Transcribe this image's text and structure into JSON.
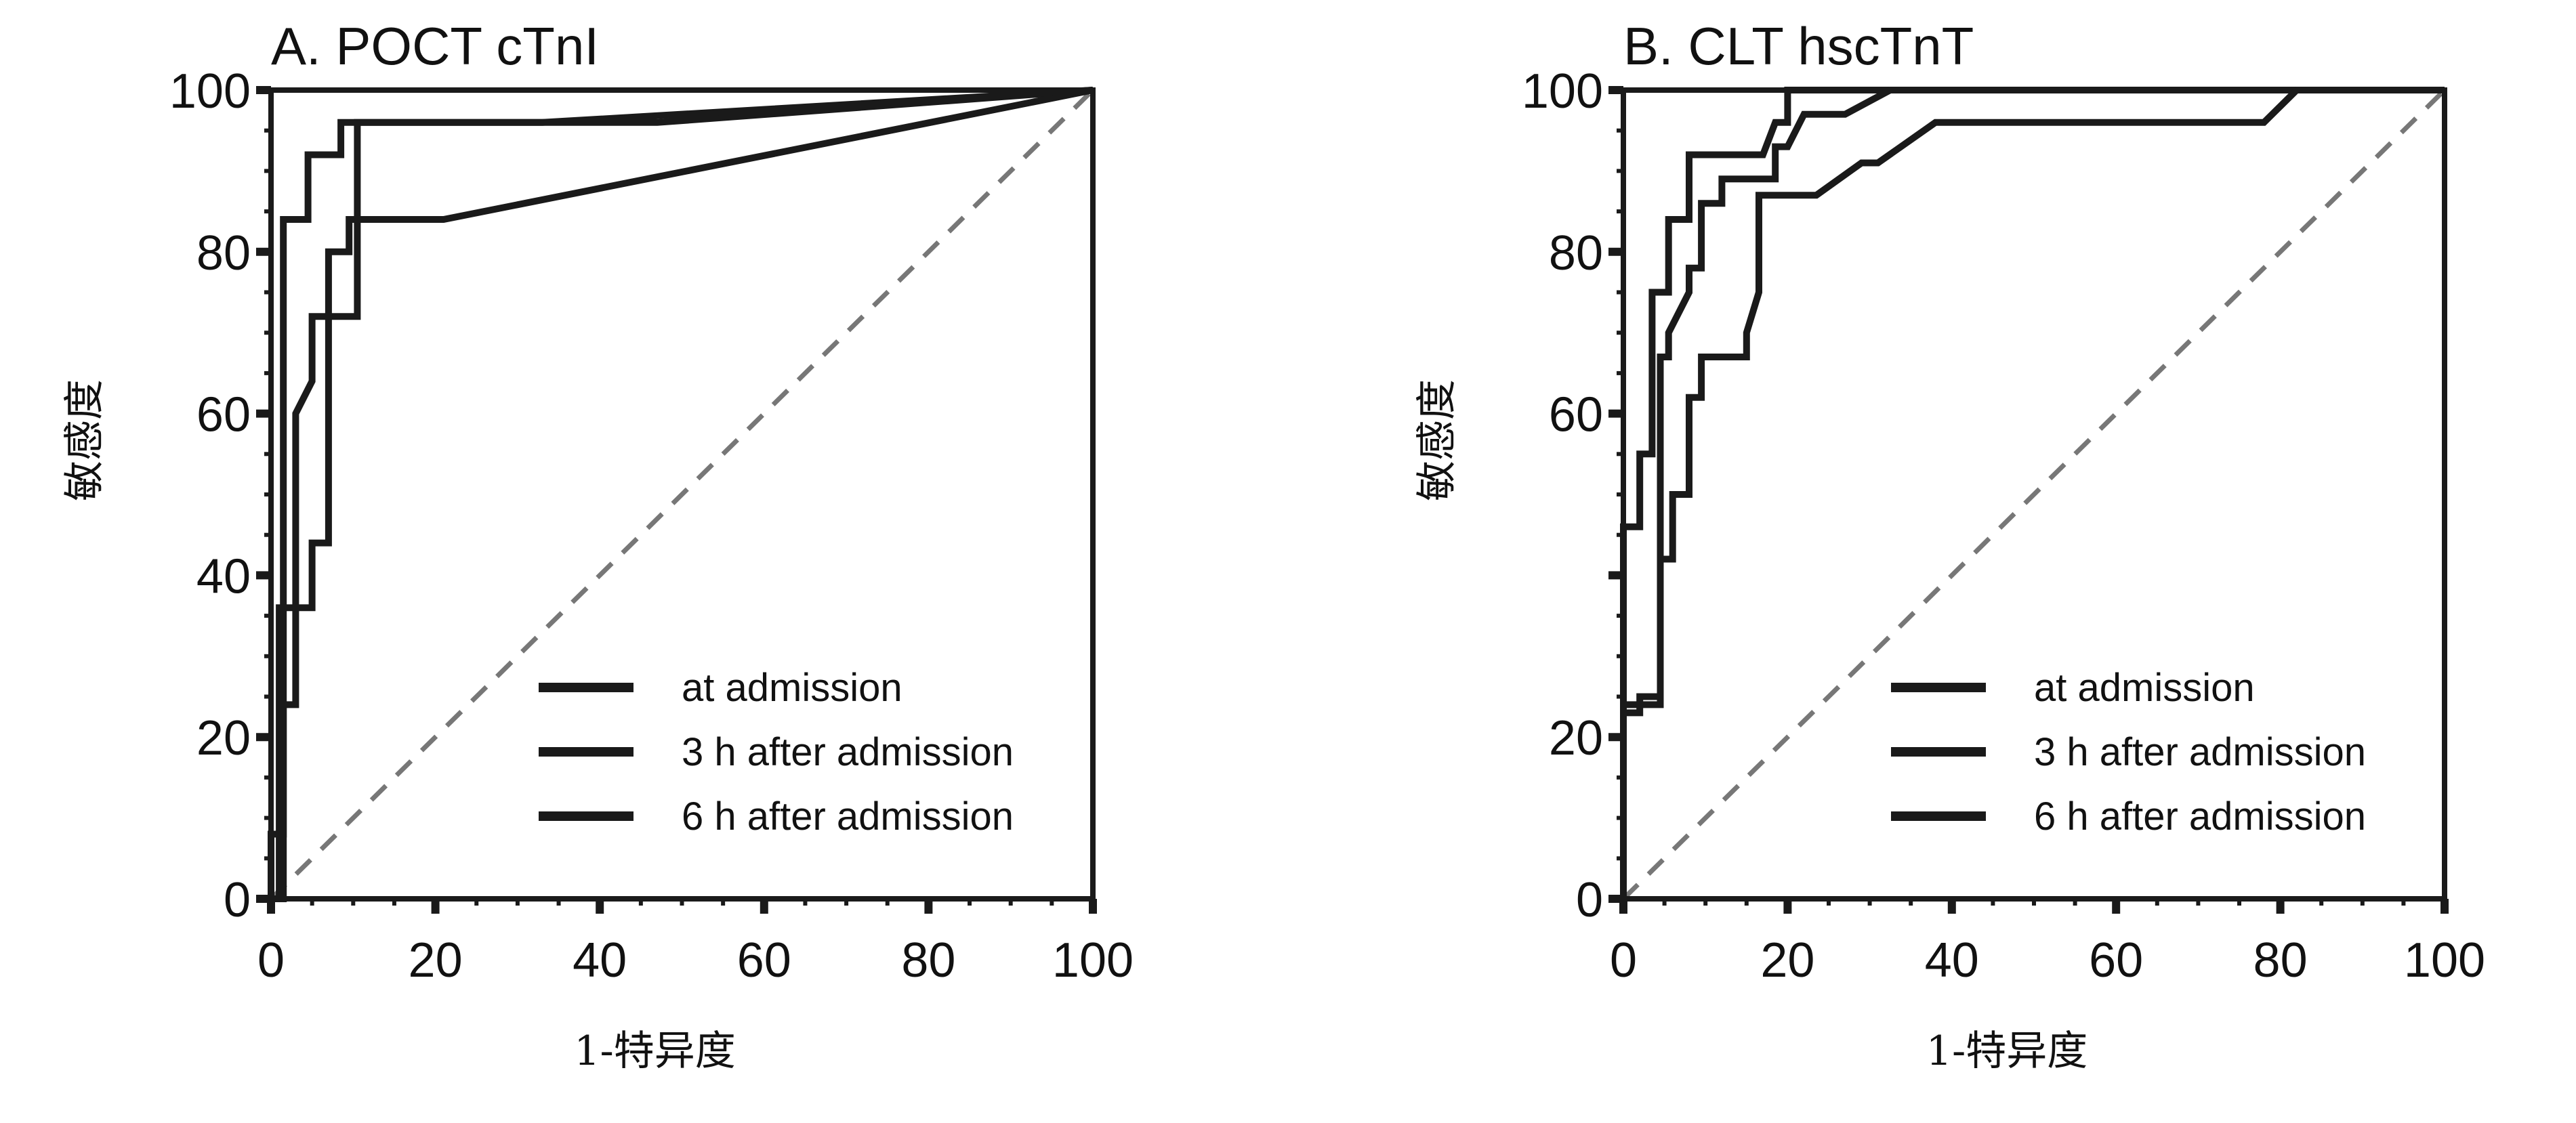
{
  "chart_data": [
    {
      "type": "line",
      "title": "A.  POCT    cTnI",
      "xlabel": "1-特异度",
      "ylabel": "敏感度",
      "xlim": [
        0,
        100
      ],
      "ylim": [
        0,
        100
      ],
      "xticks": [
        "0",
        "20",
        "40",
        "60",
        "80",
        "100"
      ],
      "yticks": [
        "0",
        "20",
        "40",
        "60",
        "80",
        "100"
      ],
      "legend_position": "bottom-right",
      "colors": {
        "series": "#1a1a1a",
        "reference": "#777777"
      },
      "series": [
        {
          "name": "at admission",
          "points": [
            [
              0,
              0
            ],
            [
              1.5,
              0
            ],
            [
              1.5,
              84
            ],
            [
              4.5,
              84
            ],
            [
              4.5,
              92
            ],
            [
              8.5,
              92
            ],
            [
              8.5,
              96
            ],
            [
              47,
              96
            ],
            [
              100,
              100
            ]
          ]
        },
        {
          "name": "3 h after admission",
          "points": [
            [
              0,
              0
            ],
            [
              0,
              8
            ],
            [
              1.5,
              8
            ],
            [
              1.5,
              24
            ],
            [
              3,
              24
            ],
            [
              3,
              60
            ],
            [
              5,
              64
            ],
            [
              5,
              72
            ],
            [
              7,
              72
            ],
            [
              7,
              80
            ],
            [
              9.5,
              80
            ],
            [
              9.5,
              84
            ],
            [
              21,
              84
            ],
            [
              100,
              100
            ]
          ]
        },
        {
          "name": "6 h after admission",
          "points": [
            [
              0,
              0
            ],
            [
              1,
              0
            ],
            [
              1,
              36
            ],
            [
              5,
              36
            ],
            [
              5,
              44
            ],
            [
              7,
              44
            ],
            [
              7,
              72
            ],
            [
              10.5,
              72
            ],
            [
              10.5,
              96
            ],
            [
              33,
              96
            ],
            [
              100,
              100
            ]
          ]
        }
      ],
      "reference_line": [
        [
          0,
          0
        ],
        [
          100,
          100
        ]
      ]
    },
    {
      "type": "line",
      "title": "B.  CLT    hscTnT",
      "xlabel": "1-特异度",
      "ylabel": "敏感度",
      "xlim": [
        0,
        100
      ],
      "ylim": [
        0,
        100
      ],
      "xticks": [
        "0",
        "20",
        "40",
        "60",
        "80",
        "100"
      ],
      "yticks": [
        "0",
        "20",
        "60",
        "80",
        "100"
      ],
      "legend_position": "bottom-right",
      "colors": {
        "series": "#1a1a1a",
        "reference": "#777777"
      },
      "series": [
        {
          "name": "at admission",
          "points": [
            [
              0,
              0
            ],
            [
              0,
              46
            ],
            [
              2,
              46
            ],
            [
              2,
              55
            ],
            [
              3.5,
              55
            ],
            [
              3.5,
              75
            ],
            [
              5.5,
              75
            ],
            [
              5.5,
              84
            ],
            [
              8,
              84
            ],
            [
              8,
              92
            ],
            [
              17,
              92
            ],
            [
              18.5,
              96
            ],
            [
              20,
              96
            ],
            [
              20,
              100
            ],
            [
              100,
              100
            ]
          ]
        },
        {
          "name": "3 h after admission",
          "points": [
            [
              0,
              0
            ],
            [
              0,
              23
            ],
            [
              2,
              23
            ],
            [
              2,
              25
            ],
            [
              4.5,
              25
            ],
            [
              4.5,
              67
            ],
            [
              5.5,
              67
            ],
            [
              5.5,
              70
            ],
            [
              8,
              75
            ],
            [
              8,
              78
            ],
            [
              9.5,
              78
            ],
            [
              9.5,
              86
            ],
            [
              12,
              86
            ],
            [
              12,
              89
            ],
            [
              18.5,
              89
            ],
            [
              18.5,
              93
            ],
            [
              20,
              93
            ],
            [
              22,
              97
            ],
            [
              27,
              97
            ],
            [
              32.5,
              100
            ],
            [
              100,
              100
            ]
          ]
        },
        {
          "name": "6 h after admission",
          "points": [
            [
              0,
              0
            ],
            [
              0,
              24
            ],
            [
              4.5,
              24
            ],
            [
              4.5,
              42
            ],
            [
              6,
              42
            ],
            [
              6,
              50
            ],
            [
              8,
              50
            ],
            [
              8,
              62
            ],
            [
              9.5,
              62
            ],
            [
              9.5,
              67
            ],
            [
              15,
              67
            ],
            [
              15,
              70
            ],
            [
              16.5,
              75
            ],
            [
              16.5,
              87
            ],
            [
              23.5,
              87
            ],
            [
              29,
              91
            ],
            [
              31,
              91
            ],
            [
              38,
              96
            ],
            [
              78,
              96
            ],
            [
              82,
              100
            ],
            [
              100,
              100
            ]
          ]
        }
      ],
      "reference_line": [
        [
          0,
          0
        ],
        [
          100,
          100
        ]
      ]
    }
  ]
}
